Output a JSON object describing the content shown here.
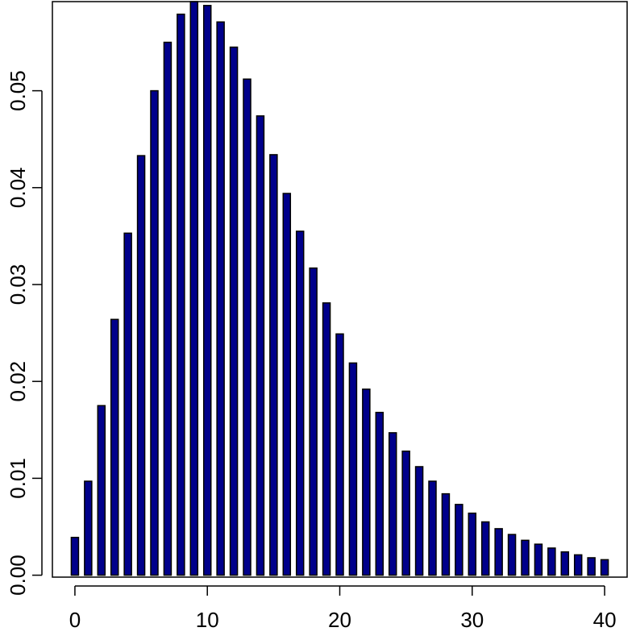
{
  "chart_data": {
    "type": "bar",
    "title": "",
    "xlabel": "",
    "ylabel": "",
    "x": [
      0,
      1,
      2,
      3,
      4,
      5,
      6,
      7,
      8,
      9,
      10,
      11,
      12,
      13,
      14,
      15,
      16,
      17,
      18,
      19,
      20,
      21,
      22,
      23,
      24,
      25,
      26,
      27,
      28,
      29,
      30,
      31,
      32,
      33,
      34,
      35,
      36,
      37,
      38,
      39,
      40
    ],
    "values": [
      0.0039,
      0.0097,
      0.0175,
      0.0264,
      0.0353,
      0.0433,
      0.05,
      0.055,
      0.0579,
      0.0592,
      0.0588,
      0.0571,
      0.0545,
      0.0512,
      0.0474,
      0.0434,
      0.0394,
      0.0355,
      0.0317,
      0.0281,
      0.0249,
      0.0219,
      0.0192,
      0.0168,
      0.0147,
      0.0128,
      0.0112,
      0.0097,
      0.0084,
      0.0073,
      0.0064,
      0.0055,
      0.0048,
      0.0042,
      0.0036,
      0.0032,
      0.0028,
      0.0024,
      0.0021,
      0.0018,
      0.0016
    ],
    "xlim": [
      -1.7,
      41.7
    ],
    "ylim": [
      -0.0002,
      0.0592
    ],
    "xticks": [
      0,
      10,
      20,
      30,
      40
    ],
    "xtick_labels": [
      "0",
      "10",
      "20",
      "30",
      "40"
    ],
    "yticks": [
      0,
      0.01,
      0.02,
      0.03,
      0.04,
      0.05
    ],
    "ytick_labels": [
      "0.00",
      "0.01",
      "0.02",
      "0.03",
      "0.04",
      "0.05"
    ],
    "bar_color": "#00008b",
    "bar_edge_color": "#000000",
    "grid": false,
    "box": true
  }
}
